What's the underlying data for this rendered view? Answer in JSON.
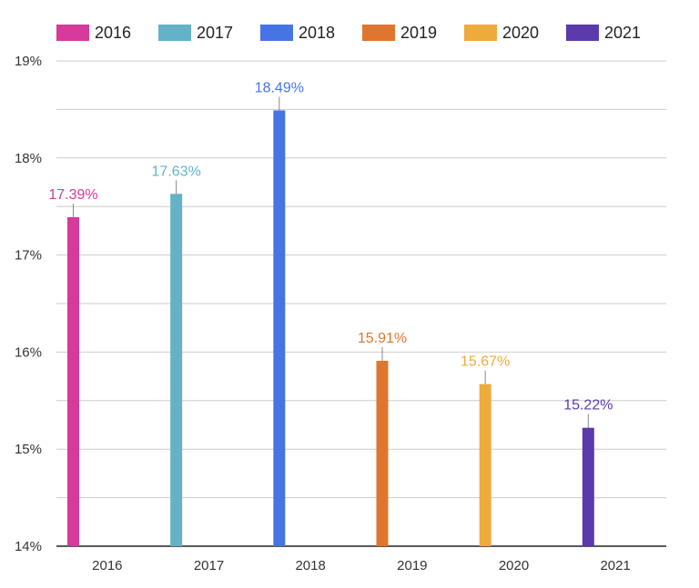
{
  "chart_data": {
    "type": "bar",
    "title": "",
    "xlabel": "",
    "ylabel": "",
    "categories": [
      "2016",
      "2017",
      "2018",
      "2019",
      "2020",
      "2021"
    ],
    "series": [
      {
        "name": "2016",
        "color": "#d63a9a",
        "values": [
          17.39,
          null,
          null,
          null,
          null,
          null
        ],
        "labels": [
          "17.39%"
        ]
      },
      {
        "name": "2017",
        "color": "#63b2c8",
        "values": [
          null,
          17.63,
          null,
          null,
          null,
          null
        ],
        "labels": [
          "17.63%"
        ]
      },
      {
        "name": "2018",
        "color": "#4674e5",
        "values": [
          null,
          null,
          18.49,
          null,
          null,
          null
        ],
        "labels": [
          "18.49%"
        ]
      },
      {
        "name": "2019",
        "color": "#de7630",
        "values": [
          null,
          null,
          null,
          15.91,
          null,
          null
        ],
        "labels": [
          "15.91%"
        ]
      },
      {
        "name": "2020",
        "color": "#edab3c",
        "values": [
          null,
          null,
          null,
          null,
          15.67,
          null
        ],
        "labels": [
          "15.67%"
        ]
      },
      {
        "name": "2021",
        "color": "#5b3aab",
        "values": [
          null,
          null,
          null,
          null,
          null,
          15.22
        ],
        "labels": [
          "15.22%"
        ]
      }
    ],
    "ylim": [
      14,
      19
    ],
    "yticks": [
      14,
      15,
      16,
      17,
      18,
      19
    ],
    "ytick_labels": [
      "14%",
      "15%",
      "16%",
      "17%",
      "18%",
      "19%"
    ],
    "grid": true,
    "legend_position": "top"
  }
}
